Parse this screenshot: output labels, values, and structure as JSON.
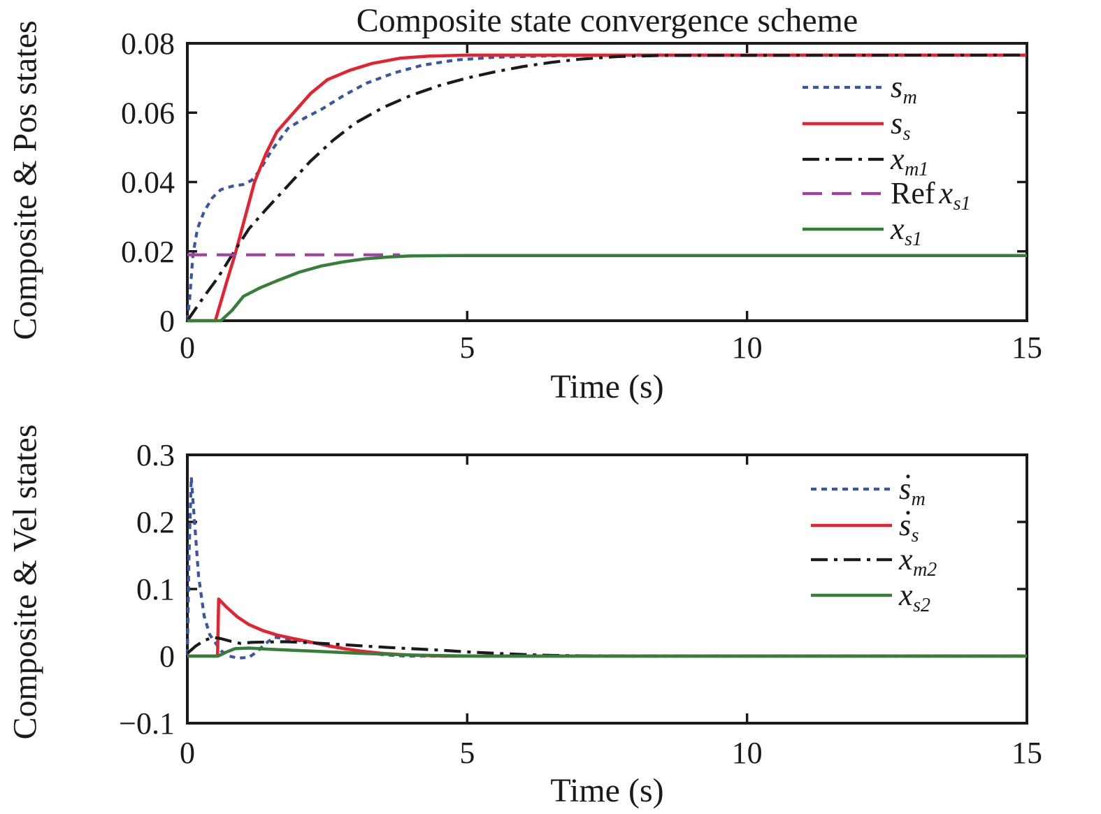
{
  "title": "Composite state convergence scheme",
  "chart_data": [
    {
      "type": "line",
      "title": "Composite state convergence scheme",
      "xlabel": "Time (s)",
      "ylabel": "Composite & Pos states",
      "xlim": [
        0,
        15
      ],
      "ylim": [
        0,
        0.08
      ],
      "xtick_values": [
        0,
        5,
        10,
        15
      ],
      "xtick_labels": [
        "0",
        "5",
        "10",
        "15"
      ],
      "ytick_values": [
        0,
        0.02,
        0.04,
        0.06,
        0.08
      ],
      "ytick_labels": [
        "0",
        "0.02",
        "0.04",
        "0.06",
        "0.08"
      ],
      "grid": false,
      "legend_position": "upper-right-inside",
      "series": [
        {
          "name": "s_m",
          "label_prefix": "",
          "label_base": "s",
          "label_sub": "m",
          "label_dot": false,
          "color": "#3a55a4",
          "line_style": "dotted",
          "points": [
            [
              0,
              0
            ],
            [
              0.04,
              0.006
            ],
            [
              0.1,
              0.019
            ],
            [
              0.18,
              0.0265
            ],
            [
              0.3,
              0.0315
            ],
            [
              0.45,
              0.0355
            ],
            [
              0.6,
              0.0378
            ],
            [
              0.8,
              0.0388
            ],
            [
              1.0,
              0.0393
            ],
            [
              1.15,
              0.0405
            ],
            [
              1.3,
              0.0435
            ],
            [
              1.5,
              0.049
            ],
            [
              1.8,
              0.0555
            ],
            [
              2.1,
              0.0585
            ],
            [
              2.4,
              0.061
            ],
            [
              2.8,
              0.065
            ],
            [
              3.2,
              0.0685
            ],
            [
              3.7,
              0.0715
            ],
            [
              4.2,
              0.0737
            ],
            [
              4.8,
              0.0752
            ],
            [
              5.5,
              0.076
            ],
            [
              6.5,
              0.0764
            ],
            [
              8,
              0.0766
            ],
            [
              15,
              0.0766
            ]
          ]
        },
        {
          "name": "s_s",
          "label_prefix": "",
          "label_base": "s",
          "label_sub": "s",
          "label_dot": false,
          "color": "#e42330",
          "line_style": "solid",
          "points": [
            [
              0,
              0
            ],
            [
              0.5,
              0
            ],
            [
              0.7,
              0.011
            ],
            [
              0.85,
              0.019
            ],
            [
              1.0,
              0.028
            ],
            [
              1.2,
              0.04
            ],
            [
              1.4,
              0.048
            ],
            [
              1.6,
              0.0545
            ],
            [
              1.9,
              0.06
            ],
            [
              2.2,
              0.0655
            ],
            [
              2.5,
              0.0695
            ],
            [
              2.9,
              0.0722
            ],
            [
              3.3,
              0.0742
            ],
            [
              3.8,
              0.0757
            ],
            [
              4.3,
              0.0763
            ],
            [
              5,
              0.0766
            ],
            [
              15,
              0.0766
            ]
          ]
        },
        {
          "name": "x_m1",
          "label_prefix": "",
          "label_base": "x",
          "label_sub": "m1",
          "label_dot": false,
          "color": "#1a1a1a",
          "line_style": "dashdot",
          "points": [
            [
              0,
              0
            ],
            [
              0.3,
              0.007
            ],
            [
              0.55,
              0.0125
            ],
            [
              0.8,
              0.019
            ],
            [
              1.1,
              0.0265
            ],
            [
              1.4,
              0.032
            ],
            [
              1.8,
              0.039
            ],
            [
              2.2,
              0.046
            ],
            [
              2.6,
              0.052
            ],
            [
              3.0,
              0.057
            ],
            [
              3.5,
              0.0615
            ],
            [
              4.0,
              0.065
            ],
            [
              4.5,
              0.0678
            ],
            [
              5.0,
              0.07
            ],
            [
              5.5,
              0.0718
            ],
            [
              6.0,
              0.0733
            ],
            [
              6.5,
              0.0745
            ],
            [
              7.0,
              0.0754
            ],
            [
              7.7,
              0.0762
            ],
            [
              8.5,
              0.0765
            ],
            [
              15,
              0.0766
            ]
          ]
        },
        {
          "name": "Ref x_s1",
          "label_prefix": "Ref",
          "label_base": "x",
          "label_sub": "s1",
          "label_dot": false,
          "color": "#a23fa2",
          "line_style": "dashed",
          "points": [
            [
              0,
              0.019
            ],
            [
              3.8,
              0.019
            ]
          ]
        },
        {
          "name": "x_s1",
          "label_prefix": "",
          "label_base": "x",
          "label_sub": "s1",
          "label_dot": false,
          "color": "#377e3a",
          "line_style": "solid",
          "points": [
            [
              0,
              0
            ],
            [
              0.6,
              0
            ],
            [
              0.8,
              0.003
            ],
            [
              1.0,
              0.007
            ],
            [
              1.3,
              0.0095
            ],
            [
              1.6,
              0.0115
            ],
            [
              2.0,
              0.014
            ],
            [
              2.4,
              0.0158
            ],
            [
              2.8,
              0.017
            ],
            [
              3.2,
              0.0179
            ],
            [
              3.6,
              0.0184
            ],
            [
              4.0,
              0.0187
            ],
            [
              5,
              0.0188
            ],
            [
              15,
              0.0188
            ]
          ]
        }
      ]
    },
    {
      "type": "line",
      "title": "",
      "xlabel": "Time (s)",
      "ylabel": "Composite & Vel states",
      "xlim": [
        0,
        15
      ],
      "ylim": [
        -0.1,
        0.3
      ],
      "xtick_values": [
        0,
        5,
        10,
        15
      ],
      "xtick_labels": [
        "0",
        "5",
        "10",
        "15"
      ],
      "ytick_values": [
        -0.1,
        0,
        0.1,
        0.2,
        0.3
      ],
      "ytick_labels": [
        "−0.1",
        "0",
        "0.1",
        "0.2",
        "0.3"
      ],
      "grid": false,
      "legend_position": "upper-right-inside",
      "series": [
        {
          "name": "sdot_m",
          "label_prefix": "",
          "label_base": "s",
          "label_sub": "m",
          "label_dot": true,
          "color": "#3a55a4",
          "line_style": "dotted",
          "points": [
            [
              0,
              0.002
            ],
            [
              0.03,
              0.15
            ],
            [
              0.07,
              0.267
            ],
            [
              0.12,
              0.21
            ],
            [
              0.2,
              0.12
            ],
            [
              0.3,
              0.06
            ],
            [
              0.4,
              0.032
            ],
            [
              0.5,
              0.02
            ],
            [
              0.6,
              0.008
            ],
            [
              0.75,
              0
            ],
            [
              0.9,
              -0.003
            ],
            [
              1.1,
              -0.002
            ],
            [
              1.25,
              0.007
            ],
            [
              1.4,
              0.019
            ],
            [
              1.55,
              0.028
            ],
            [
              1.75,
              0.0265
            ],
            [
              2.0,
              0.023
            ],
            [
              2.3,
              0.019
            ],
            [
              2.7,
              0.013
            ],
            [
              3.1,
              0.007
            ],
            [
              3.5,
              0.002
            ],
            [
              3.9,
              0
            ],
            [
              4.5,
              0
            ],
            [
              15,
              0
            ]
          ]
        },
        {
          "name": "sdot_s",
          "label_prefix": "",
          "label_base": "s",
          "label_sub": "s",
          "label_dot": true,
          "color": "#e42330",
          "line_style": "solid",
          "points": [
            [
              0,
              0
            ],
            [
              0.54,
              0
            ],
            [
              0.56,
              0.085
            ],
            [
              0.7,
              0.073
            ],
            [
              0.9,
              0.058
            ],
            [
              1.1,
              0.047
            ],
            [
              1.35,
              0.038
            ],
            [
              1.6,
              0.0315
            ],
            [
              1.9,
              0.026
            ],
            [
              2.2,
              0.021
            ],
            [
              2.5,
              0.0155
            ],
            [
              2.8,
              0.011
            ],
            [
              3.1,
              0.0075
            ],
            [
              3.5,
              0.004
            ],
            [
              4.0,
              0.0015
            ],
            [
              4.6,
              0
            ],
            [
              15,
              0
            ]
          ]
        },
        {
          "name": "x_m2",
          "label_prefix": "",
          "label_base": "x",
          "label_sub": "m2",
          "label_dot": false,
          "color": "#1a1a1a",
          "line_style": "dashdot",
          "points": [
            [
              0,
              0.004
            ],
            [
              0.15,
              0.015
            ],
            [
              0.3,
              0.023
            ],
            [
              0.45,
              0.028
            ],
            [
              0.6,
              0.026
            ],
            [
              0.78,
              0.022
            ],
            [
              0.95,
              0.019
            ],
            [
              1.15,
              0.0205
            ],
            [
              1.45,
              0.021
            ],
            [
              1.75,
              0.0215
            ],
            [
              2.05,
              0.0205
            ],
            [
              2.4,
              0.019
            ],
            [
              2.8,
              0.017
            ],
            [
              3.2,
              0.0148
            ],
            [
              3.6,
              0.0128
            ],
            [
              4.0,
              0.011
            ],
            [
              4.5,
              0.009
            ],
            [
              5.0,
              0.0062
            ],
            [
              5.5,
              0.0042
            ],
            [
              6.0,
              0.0024
            ],
            [
              6.5,
              0.001
            ],
            [
              7.2,
              0.0003
            ],
            [
              8,
              0
            ],
            [
              15,
              0
            ]
          ]
        },
        {
          "name": "x_s2",
          "label_prefix": "",
          "label_base": "x",
          "label_sub": "s2",
          "label_dot": false,
          "color": "#377e3a",
          "line_style": "solid",
          "points": [
            [
              0,
              0
            ],
            [
              0.55,
              0
            ],
            [
              0.7,
              0.006
            ],
            [
              0.85,
              0.011
            ],
            [
              1.1,
              0.012
            ],
            [
              1.4,
              0.0105
            ],
            [
              1.8,
              0.009
            ],
            [
              2.2,
              0.0075
            ],
            [
              2.6,
              0.006
            ],
            [
              3.0,
              0.0045
            ],
            [
              3.5,
              0.003
            ],
            [
              4.0,
              0.0017
            ],
            [
              4.5,
              0.0007
            ],
            [
              5.2,
              0
            ],
            [
              15,
              0
            ]
          ]
        }
      ]
    }
  ]
}
